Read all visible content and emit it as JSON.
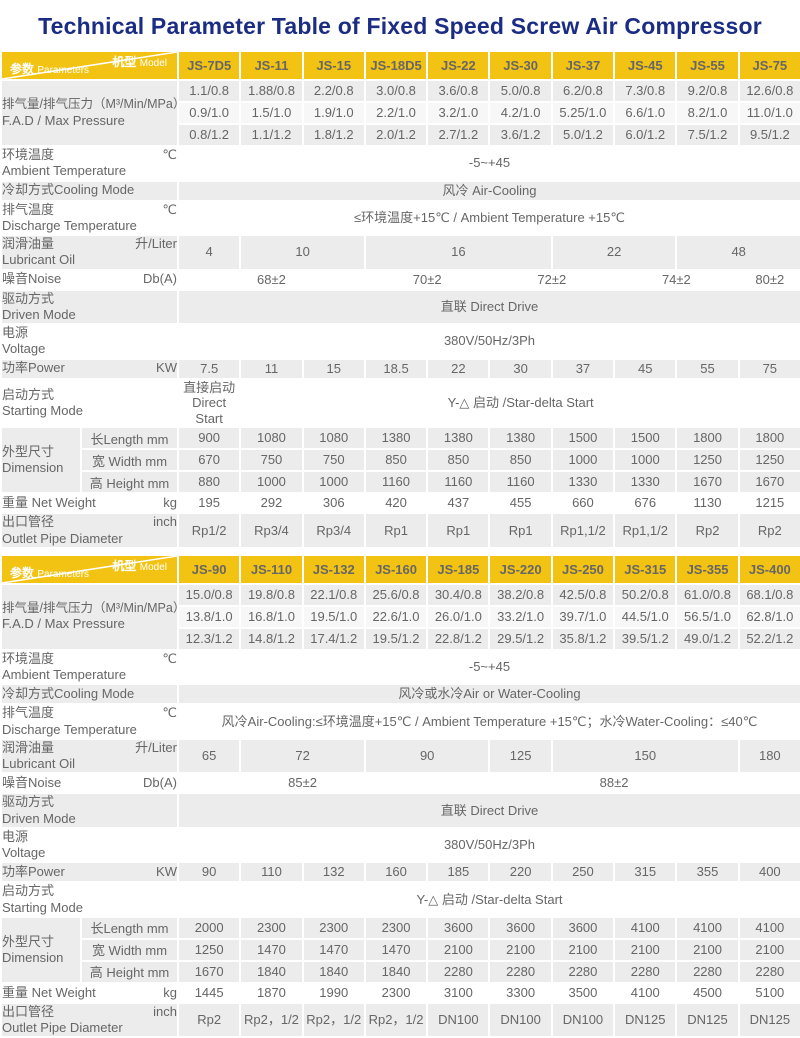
{
  "title": "Technical Parameter Table of  Fixed Speed Screw Air Compressor",
  "colors": {
    "title_blue": "#1B2C85",
    "header_yellow": "#F3C313",
    "row_gray": "#ECECEC",
    "row_light": "#F7F7F7",
    "text_gray": "#666666",
    "header_text": "#3C3C3C"
  },
  "header_corner": {
    "model_zh": "机型",
    "model_en": "Model",
    "params_zh": "参数",
    "params_en": "Parameters"
  },
  "row_defs": [
    {
      "id": "fad",
      "type": "group3",
      "zh": "排气量/排气压力（M³/Min/MPa）",
      "en": "F.A.D / Max Pressure",
      "shades": [
        "g",
        "l",
        "g"
      ]
    },
    {
      "id": "ambient",
      "type": "span",
      "zh": "环境温度",
      "en": "Ambient Temperature",
      "unit": "℃",
      "shade": "w",
      "h": 2
    },
    {
      "id": "cooling",
      "type": "span",
      "zh": "冷却方式Cooling Mode",
      "shade": "g",
      "h": 1
    },
    {
      "id": "discharge",
      "type": "span",
      "zh": "排气温度",
      "en": "Discharge Temperature",
      "unit": "℃",
      "shade": "w",
      "h": 2
    },
    {
      "id": "lubricant",
      "type": "cells",
      "zh": "润滑油量",
      "en": "Lubricant Oil",
      "unit": "升/Liter",
      "shade": "g",
      "h": 2
    },
    {
      "id": "noise",
      "type": "cells",
      "zh": "噪音Noise",
      "unit": "Db(A)",
      "shade": "w",
      "h": 1
    },
    {
      "id": "driven",
      "type": "span",
      "zh": "驱动方式",
      "en": "Driven Mode",
      "shade": "g",
      "h": 2
    },
    {
      "id": "voltage",
      "type": "span",
      "zh": "电源",
      "en": "Voltage",
      "shade": "w",
      "h": 2
    },
    {
      "id": "power",
      "type": "cells",
      "zh": "功率Power",
      "unit": "KW",
      "shade": "g",
      "h": 1
    },
    {
      "id": "starting",
      "type": "cells",
      "zh": "启动方式",
      "en": "Starting Mode",
      "shade": "w",
      "h": 2
    },
    {
      "id": "dimension",
      "type": "dim3",
      "zh": "外型尺寸",
      "en": "Dimension",
      "sub": [
        "长Length mm",
        "宽 Width  mm",
        "高 Height mm"
      ],
      "shades": [
        "g",
        "g",
        "g"
      ]
    },
    {
      "id": "weight",
      "type": "cells",
      "zh": "重量 Net Weight",
      "unit": "kg",
      "shade": "w",
      "h": 1
    },
    {
      "id": "outlet",
      "type": "cells",
      "zh": "出口管径",
      "en": "Outlet Pipe Diameter",
      "unit": "inch",
      "shade": "g",
      "h": 2
    }
  ],
  "tables": [
    {
      "models": [
        "JS-7D5",
        "JS-11",
        "JS-15",
        "JS-18D5",
        "JS-22",
        "JS-30",
        "JS-37",
        "JS-45",
        "JS-55",
        "JS-75"
      ],
      "values": {
        "fad": [
          [
            "1.1/0.8",
            "1.88/0.8",
            "2.2/0.8",
            "3.0/0.8",
            "3.6/0.8",
            "5.0/0.8",
            "6.2/0.8",
            "7.3/0.8",
            "9.2/0.8",
            "12.6/0.8"
          ],
          [
            "0.9/1.0",
            "1.5/1.0",
            "1.9/1.0",
            "2.2/1.0",
            "3.2/1.0",
            "4.2/1.0",
            "5.25/1.0",
            "6.6/1.0",
            "8.2/1.0",
            "11.0/1.0"
          ],
          [
            "0.8/1.2",
            "1.1/1.2",
            "1.8/1.2",
            "2.0/1.2",
            "2.7/1.2",
            "3.6/1.2",
            "5.0/1.2",
            "6.0/1.2",
            "7.5/1.2",
            "9.5/1.2"
          ]
        ],
        "ambient": "-5~+45",
        "cooling": "风冷 Air-Cooling",
        "discharge": "≤环境温度+15℃ / Ambient Temperature  +15℃",
        "lubricant": [
          {
            "v": "4",
            "s": 1
          },
          {
            "v": "10",
            "s": 2
          },
          {
            "v": "16",
            "s": 3
          },
          {
            "v": "22",
            "s": 2
          },
          {
            "v": "48",
            "s": 2
          }
        ],
        "noise": [
          {
            "v": "68±2",
            "s": 3
          },
          {
            "v": "70±2",
            "s": 2
          },
          {
            "v": "72±2",
            "s": 2
          },
          {
            "v": "74±2",
            "s": 2
          },
          {
            "v": "80±2",
            "s": 1
          }
        ],
        "driven": "直联 Direct Drive",
        "voltage": "380V/50Hz/3Ph",
        "power": [
          "7.5",
          "11",
          "15",
          "18.5",
          "22",
          "30",
          "37",
          "45",
          "55",
          "75"
        ],
        "starting": [
          {
            "v": "直接启动\nDirect Start",
            "s": 1
          },
          {
            "v": "Y-△ 启动 /Star-delta Start",
            "s": 9
          }
        ],
        "dimension": [
          [
            "900",
            "1080",
            "1080",
            "1380",
            "1380",
            "1380",
            "1500",
            "1500",
            "1800",
            "1800"
          ],
          [
            "670",
            "750",
            "750",
            "850",
            "850",
            "850",
            "1000",
            "1000",
            "1250",
            "1250"
          ],
          [
            "880",
            "1000",
            "1000",
            "1160",
            "1160",
            "1160",
            "1330",
            "1330",
            "1670",
            "1670"
          ]
        ],
        "weight": [
          "195",
          "292",
          "306",
          "420",
          "437",
          "455",
          "660",
          "676",
          "1130",
          "1215"
        ],
        "outlet": [
          "Rp1/2",
          "Rp3/4",
          "Rp3/4",
          "Rp1",
          "Rp1",
          "Rp1",
          "Rp1,1/2",
          "Rp1,1/2",
          "Rp2",
          "Rp2"
        ]
      }
    },
    {
      "models": [
        "JS-90",
        "JS-110",
        "JS-132",
        "JS-160",
        "JS-185",
        "JS-220",
        "JS-250",
        "JS-315",
        "JS-355",
        "JS-400"
      ],
      "values": {
        "fad": [
          [
            "15.0/0.8",
            "19.8/0.8",
            "22.1/0.8",
            "25.6/0.8",
            "30.4/0.8",
            "38.2/0.8",
            "42.5/0.8",
            "50.2/0.8",
            "61.0/0.8",
            "68.1/0.8"
          ],
          [
            "13.8/1.0",
            "16.8/1.0",
            "19.5/1.0",
            "22.6/1.0",
            "26.0/1.0",
            "33.2/1.0",
            "39.7/1.0",
            "44.5/1.0",
            "56.5/1.0",
            "62.8/1.0"
          ],
          [
            "12.3/1.2",
            "14.8/1.2",
            "17.4/1.2",
            "19.5/1.2",
            "22.8/1.2",
            "29.5/1.2",
            "35.8/1.2",
            "39.5/1.2",
            "49.0/1.2",
            "52.2/1.2"
          ]
        ],
        "ambient": "-5~+45",
        "cooling": "风冷或水冷Air or Water-Cooling",
        "discharge": "风冷Air-Cooling:≤环境温度+15℃ / Ambient Temperature  +15℃；水冷Water-Cooling：≤40℃",
        "lubricant": [
          {
            "v": "65",
            "s": 1
          },
          {
            "v": "72",
            "s": 2
          },
          {
            "v": "90",
            "s": 2
          },
          {
            "v": "125",
            "s": 1
          },
          {
            "v": "150",
            "s": 3
          },
          {
            "v": "180",
            "s": 1
          }
        ],
        "noise": [
          {
            "v": "85±2",
            "s": 4
          },
          {
            "v": "88±2",
            "s": 6
          }
        ],
        "driven": "直联 Direct Drive",
        "voltage": "380V/50Hz/3Ph",
        "power": [
          "90",
          "110",
          "132",
          "160",
          "185",
          "220",
          "250",
          "315",
          "355",
          "400"
        ],
        "starting": [
          {
            "v": "Y-△ 启动 /Star-delta Start",
            "s": 10
          }
        ],
        "dimension": [
          [
            "2000",
            "2300",
            "2300",
            "2300",
            "3600",
            "3600",
            "3600",
            "4100",
            "4100",
            "4100"
          ],
          [
            "1250",
            "1470",
            "1470",
            "1470",
            "2100",
            "2100",
            "2100",
            "2100",
            "2100",
            "2100"
          ],
          [
            "1670",
            "1840",
            "1840",
            "1840",
            "2280",
            "2280",
            "2280",
            "2280",
            "2280",
            "2280"
          ]
        ],
        "weight": [
          "1445",
          "1870",
          "1990",
          "2300",
          "3100",
          "3300",
          "3500",
          "4100",
          "4500",
          "5100"
        ],
        "outlet": [
          "Rp2",
          "Rp2，1/2",
          "Rp2，1/2",
          "Rp2，1/2",
          "DN100",
          "DN100",
          "DN100",
          "DN125",
          "DN125",
          "DN125"
        ]
      }
    }
  ]
}
